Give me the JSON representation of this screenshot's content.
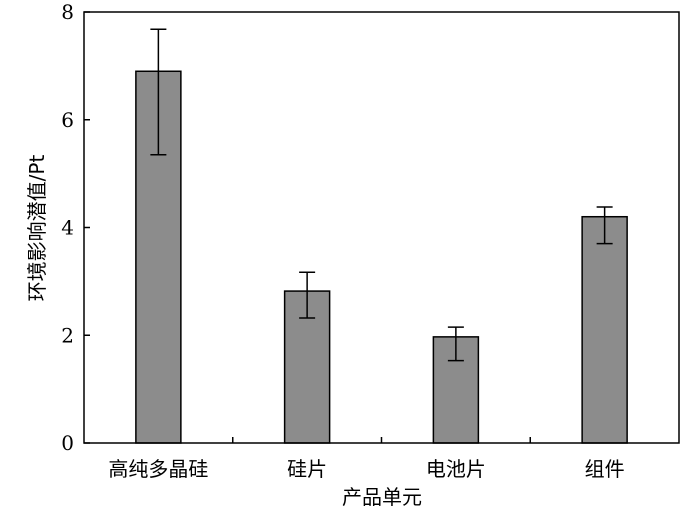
{
  "chart_data": {
    "type": "bar",
    "categories": [
      "高纯多晶硅",
      "硅片",
      "电池片",
      "组件"
    ],
    "values": [
      6.9,
      2.82,
      1.97,
      4.2
    ],
    "error_low": [
      5.35,
      2.32,
      1.53,
      3.7
    ],
    "error_high": [
      7.68,
      3.17,
      2.15,
      4.38
    ],
    "xlabel": "产品单元",
    "ylabel": "环境影响潜值/Pt",
    "ylim": [
      0,
      8
    ],
    "yticks": [
      0,
      2,
      4,
      6,
      8
    ],
    "grid": false,
    "colors": {
      "bar_fill": "#8c8c8c",
      "bar_stroke": "#000000",
      "axis": "#000000"
    }
  }
}
